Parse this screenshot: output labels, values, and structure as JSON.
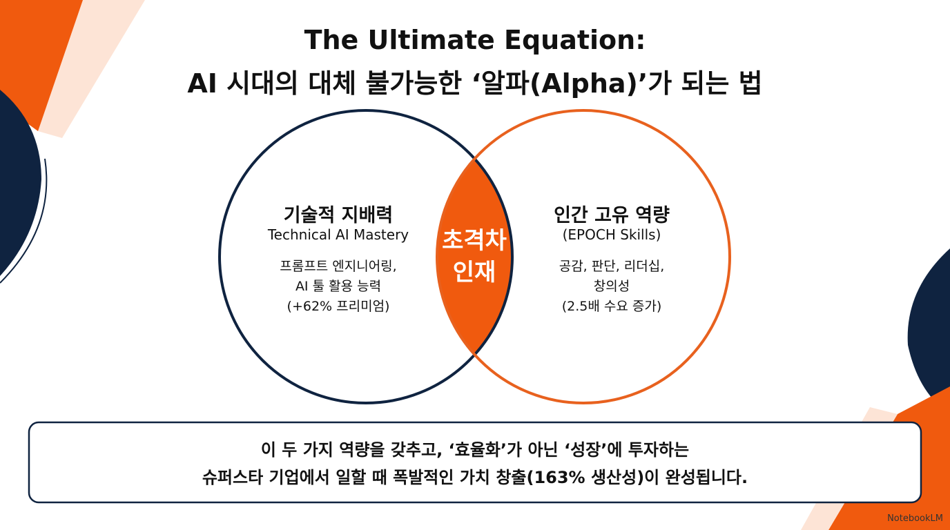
{
  "header": {
    "title_line1": "The Ultimate Equation:",
    "title_line2": "AI 시대의 대체 불가능한 ‘알파(Alpha)’가 되는 법"
  },
  "venn": {
    "left": {
      "title": "기술적 지배력",
      "subtitle": "Technical AI Mastery",
      "lines": [
        "프롬프트 엔지니어링,",
        "AI 툴 활용 능력",
        "(+62% 프리미엄)"
      ]
    },
    "center": {
      "lines": [
        "초격차",
        "인재"
      ]
    },
    "right": {
      "title": "인간 고유 역량",
      "subtitle": "(EPOCH Skills)",
      "lines": [
        "공감, 판단, 리더십,",
        "창의성",
        "(2.5배 수요 증가)"
      ]
    }
  },
  "footer": {
    "lines": [
      "이 두 가지 역량을 갖추고, ‘효율화’가 아닌 ‘성장’에 투자하는",
      "슈퍼스타 기업에서 일할 때 폭발적인 가치 창출(163% 생산성)이 완성됩니다."
    ]
  },
  "watermark": "NotebookLM"
}
